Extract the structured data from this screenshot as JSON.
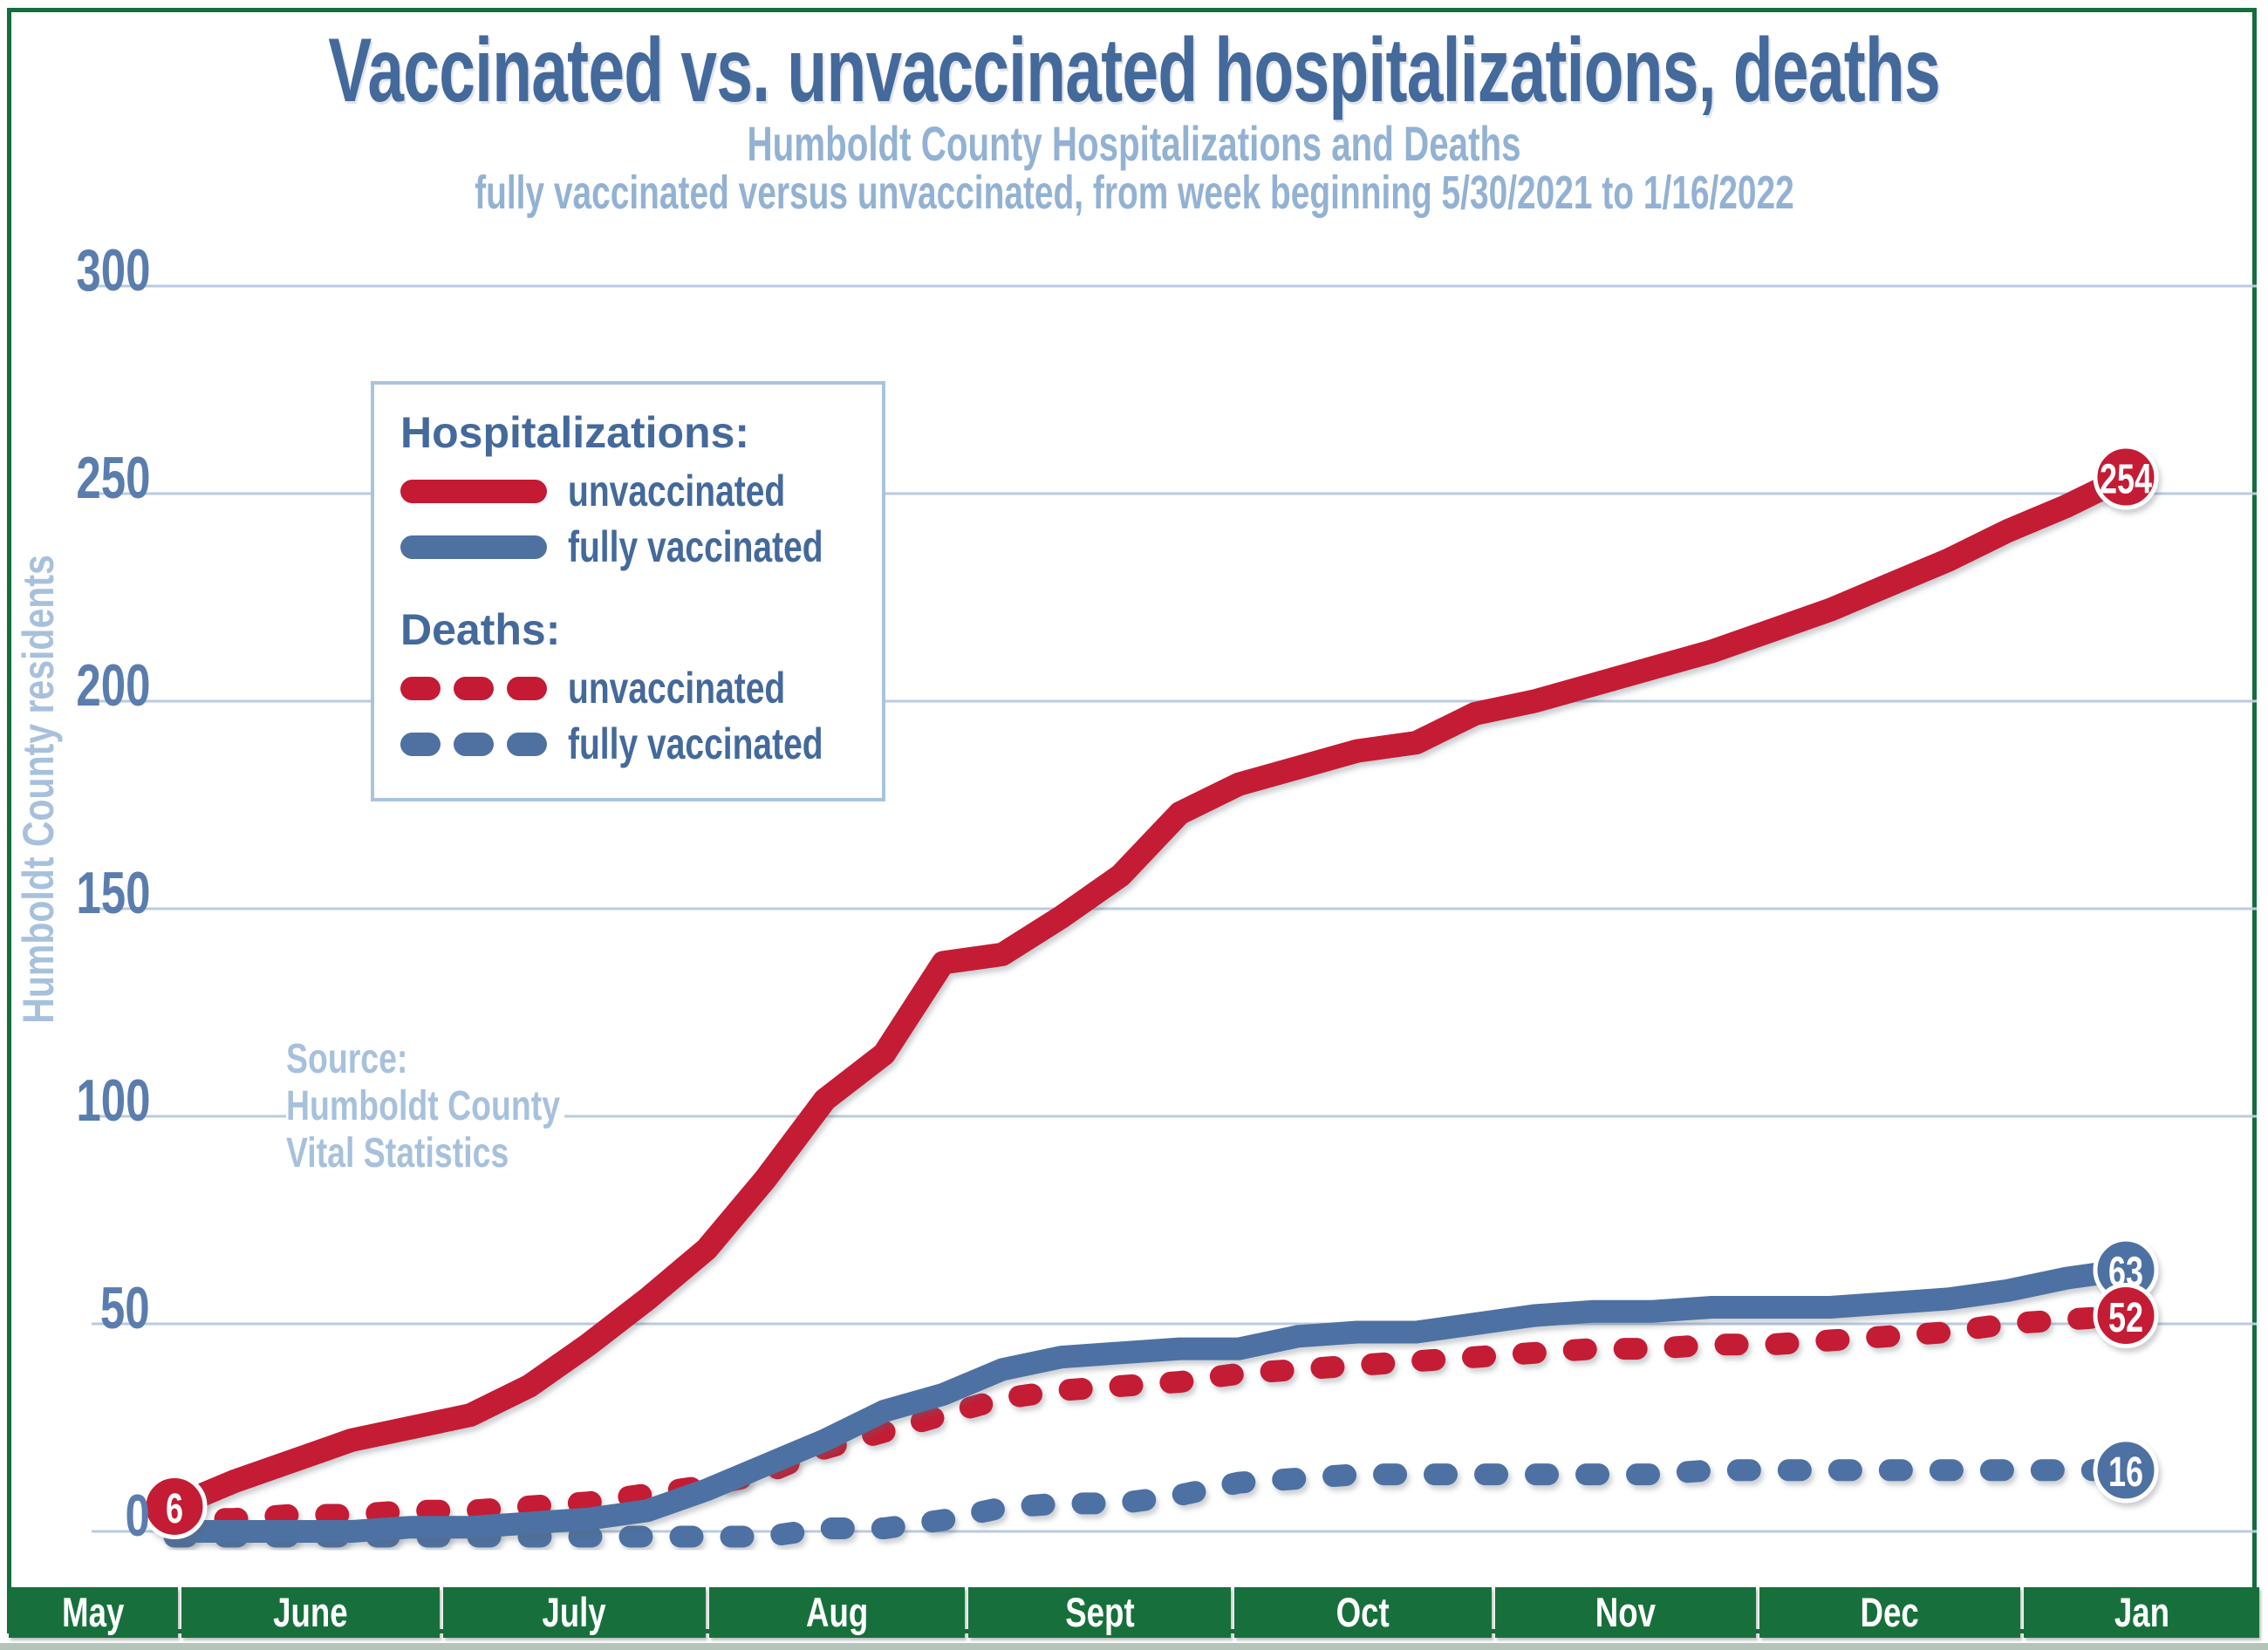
{
  "header": {
    "title": "Vaccinated vs. unvaccinated hospitalizations, deaths",
    "subtitle1": "Humboldt County Hospitalizations and Deaths",
    "subtitle2": "fully vaccinated versus unvaccinated, from week beginning 5/30/2021 to 1/16/2022"
  },
  "y_axis": {
    "label": "Humboldt County residents",
    "ticks": [
      300,
      250,
      200,
      150,
      100,
      50,
      0
    ]
  },
  "legend": {
    "hospitalizations_header": "Hospitalizations:",
    "deaths_header": "Deaths:",
    "unvaccinated_label": "unvaccinated",
    "fully_vaccinated_label": "fully vaccinated"
  },
  "source": {
    "lines": [
      "Source:",
      "Humboldt County",
      "Vital Statistics"
    ]
  },
  "months": [
    "May",
    "June",
    "July",
    "Aug",
    "Sept",
    "Oct",
    "Nov",
    "Dec",
    "Jan"
  ],
  "colors": {
    "red": "#c41a34",
    "blue": "#4e71a2",
    "grid": "#b9cbdf",
    "title_blue": "#44699b",
    "subtitle_blue": "#93b2d3",
    "tick_blue": "#5a7dad",
    "light_blue": "#a9c3dc",
    "green": "#17703b",
    "label_text": "#ffffff"
  },
  "chart_data": {
    "type": "line",
    "title": "Humboldt County Hospitalizations and Deaths, fully vaccinated versus unvaccinated",
    "xlabel": "week beginning 5/30/2021 to 1/16/2022",
    "ylabel": "Humboldt County residents",
    "ylim": [
      0,
      300
    ],
    "grid": true,
    "legend_position": "upper-left-inset",
    "x_month_labels": [
      "May",
      "June",
      "July",
      "Aug",
      "Sept",
      "Oct",
      "Nov",
      "Dec",
      "Jan"
    ],
    "x_weeks": [
      "5/30",
      "6/6",
      "6/13",
      "6/20",
      "6/27",
      "7/4",
      "7/11",
      "7/18",
      "7/25",
      "8/1",
      "8/8",
      "8/15",
      "8/22",
      "8/29",
      "9/5",
      "9/12",
      "9/19",
      "9/26",
      "10/3",
      "10/10",
      "10/17",
      "10/24",
      "10/31",
      "11/7",
      "11/14",
      "11/21",
      "11/28",
      "12/5",
      "12/12",
      "12/19",
      "12/26",
      "1/2",
      "1/9",
      "1/16"
    ],
    "series": [
      {
        "name": "Hospitalizations unvaccinated",
        "style": "solid",
        "color": "#c41a34",
        "start_label": 6,
        "end_label": 254,
        "values": [
          6,
          12,
          17,
          22,
          25,
          28,
          35,
          45,
          56,
          68,
          85,
          104,
          115,
          137,
          139,
          148,
          158,
          173,
          180,
          184,
          188,
          190,
          197,
          200,
          204,
          208,
          212,
          217,
          222,
          228,
          234,
          241,
          247,
          254
        ]
      },
      {
        "name": "Hospitalizations fully vaccinated",
        "style": "solid",
        "color": "#4e71a2",
        "end_label": 63,
        "values": [
          0,
          0,
          0,
          0,
          1,
          1,
          2,
          3,
          5,
          10,
          16,
          22,
          29,
          33,
          39,
          42,
          43,
          44,
          44,
          47,
          48,
          48,
          50,
          52,
          53,
          53,
          54,
          54,
          54,
          55,
          56,
          58,
          61,
          63
        ]
      },
      {
        "name": "Deaths unvaccinated",
        "style": "dashed",
        "color": "#c41a34",
        "end_label": 52,
        "values": [
          3,
          3,
          4,
          4,
          5,
          5,
          6,
          7,
          9,
          11,
          14,
          20,
          24,
          28,
          32,
          34,
          35,
          36,
          38,
          39,
          40,
          41,
          42,
          43,
          44,
          44,
          45,
          45,
          46,
          47,
          48,
          50,
          51,
          52
        ]
      },
      {
        "name": "Deaths fully vaccinated",
        "style": "dashed",
        "color": "#4e71a2",
        "end_label": 16,
        "values": [
          0,
          0,
          0,
          0,
          0,
          0,
          0,
          0,
          0,
          0,
          0,
          2,
          2,
          4,
          7,
          8,
          8,
          10,
          13,
          14,
          15,
          15,
          15,
          15,
          15,
          15,
          16,
          16,
          16,
          16,
          16,
          16,
          16,
          16
        ]
      }
    ]
  }
}
